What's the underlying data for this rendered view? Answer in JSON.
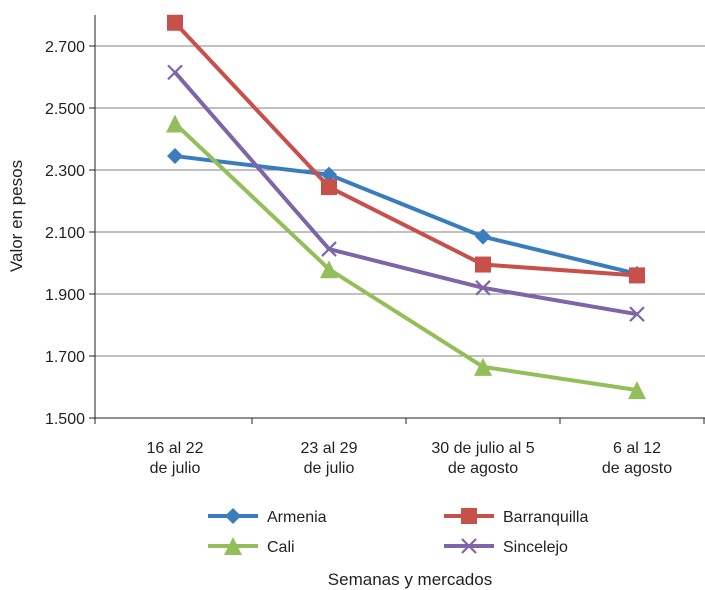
{
  "chart_data": {
    "type": "line",
    "title": "",
    "xlabel": "Semanas y mercados",
    "ylabel": "Valor en pesos",
    "categories": [
      [
        "16 al 22",
        "de julio"
      ],
      [
        "23 al 29",
        "de julio"
      ],
      [
        "30 de julio al 5",
        "de agosto"
      ],
      [
        "6 al 12",
        "de agosto"
      ]
    ],
    "y_ticks": [
      "1.500",
      "1.700",
      "1.900",
      "2.100",
      "2.300",
      "2.500",
      "2.700"
    ],
    "y_tick_values": [
      1500,
      1700,
      1900,
      2100,
      2300,
      2500,
      2700
    ],
    "ylim": [
      1500,
      2800
    ],
    "grid": true,
    "legend": "bottom",
    "series": [
      {
        "name": "Armenia",
        "color": "#3a7dbf",
        "marker": "diamond",
        "values": [
          2345,
          2285,
          2085,
          1965
        ]
      },
      {
        "name": "Barranquilla",
        "color": "#c8504b",
        "marker": "square",
        "values": [
          2775,
          2245,
          1995,
          1960
        ]
      },
      {
        "name": "Cali",
        "color": "#93bf5a",
        "marker": "triangle",
        "values": [
          2450,
          1980,
          1665,
          1590
        ]
      },
      {
        "name": "Sincelejo",
        "color": "#7e64a8",
        "marker": "x",
        "values": [
          2615,
          2045,
          1920,
          1835
        ]
      }
    ]
  }
}
